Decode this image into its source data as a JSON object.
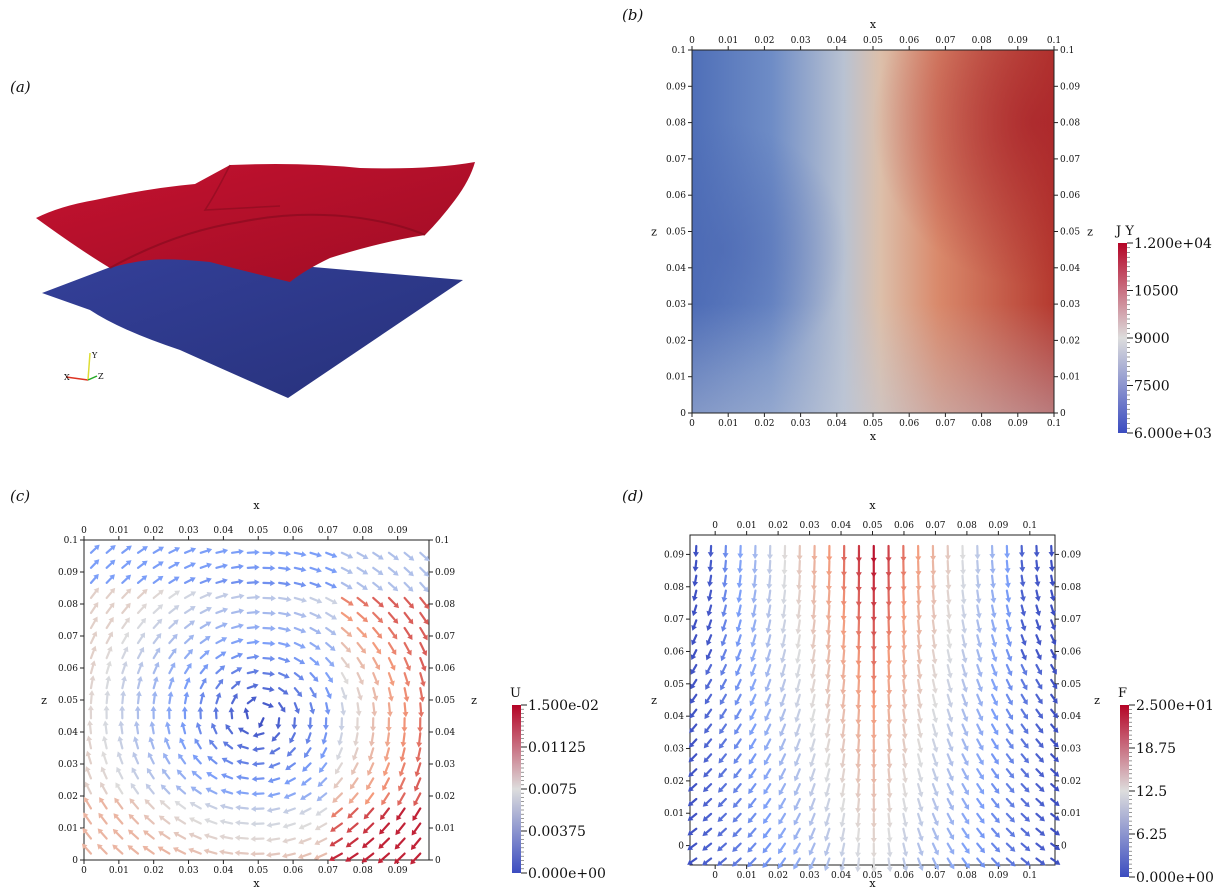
{
  "panels": {
    "a": "(a)",
    "b": "(b)",
    "c": "(c)",
    "d": "(d)"
  },
  "chart_data": [
    {
      "panel": "(a)",
      "type": "surface",
      "surfaces": [
        {
          "color": "#b5112b",
          "description_level": "upper"
        },
        {
          "color": "#2e3a8c",
          "description_level": "lower"
        }
      ],
      "axis_triad": [
        "X",
        "Y",
        "Z"
      ]
    },
    {
      "panel": "(b)",
      "type": "heatmap",
      "xlabel": "x",
      "ylabel": "z",
      "xlim": [
        0,
        0.1
      ],
      "ylim": [
        0,
        0.1
      ],
      "ticks": [
        "0",
        "0.01",
        "0.02",
        "0.03",
        "0.04",
        "0.05",
        "0.06",
        "0.07",
        "0.08",
        "0.09",
        "0.1"
      ],
      "colorbar": {
        "title": "J Y",
        "min": 6000,
        "max": 12000,
        "labels": [
          "1.200e+04",
          "10500",
          "9000",
          "7500",
          "6.000e+03"
        ],
        "label_values": [
          12000,
          10500,
          9000,
          7500,
          6000
        ]
      },
      "field": {
        "description": "value increases from left (~7000) to right (~11500), max near x=0.1, z=0.08",
        "samples": [
          {
            "x": 0.0,
            "z": 0.09,
            "value": 7000
          },
          {
            "x": 0.02,
            "z": 0.05,
            "value": 6900
          },
          {
            "x": 0.05,
            "z": 0.05,
            "value": 9000
          },
          {
            "x": 0.08,
            "z": 0.05,
            "value": 10800
          },
          {
            "x": 0.1,
            "z": 0.08,
            "value": 11800
          },
          {
            "x": 0.0,
            "z": 0.0,
            "value": 8200
          },
          {
            "x": 0.1,
            "z": 0.0,
            "value": 10400
          }
        ]
      }
    },
    {
      "panel": "(c)",
      "type": "vector-field",
      "xlabel": "x",
      "ylabel": "z",
      "xlim": [
        0,
        0.099
      ],
      "ylim": [
        0,
        0.1
      ],
      "xticks": [
        "0",
        "0.01",
        "0.02",
        "0.03",
        "0.04",
        "0.05",
        "0.06",
        "0.07",
        "0.08",
        "0.09"
      ],
      "yticks": [
        "0",
        "0.01",
        "0.02",
        "0.03",
        "0.04",
        "0.05",
        "0.06",
        "0.07",
        "0.08",
        "0.09",
        "0.1"
      ],
      "colorbar": {
        "title": "U",
        "min": 0,
        "max": 0.015,
        "labels": [
          "1.500e-02",
          "0.01125",
          "0.0075",
          "0.00375",
          "0.000e+00"
        ],
        "label_values": [
          0.015,
          0.01125,
          0.0075,
          0.00375,
          0
        ]
      },
      "flow": "clockwise recirculating vortex centred near x=0.05, z=0.045"
    },
    {
      "panel": "(d)",
      "type": "vector-field",
      "xlabel": "x",
      "ylabel": "z",
      "xlim": [
        -0.008,
        0.108
      ],
      "ylim": [
        -0.006,
        0.096
      ],
      "xticks": [
        "0",
        "0.01",
        "0.02",
        "0.03",
        "0.04",
        "0.05",
        "0.06",
        "0.07",
        "0.08",
        "0.09",
        "0.1"
      ],
      "yticks": [
        "0",
        "0.01",
        "0.02",
        "0.03",
        "0.04",
        "0.05",
        "0.06",
        "0.07",
        "0.08",
        "0.09"
      ],
      "colorbar": {
        "title": "F",
        "min": 0,
        "max": 25,
        "labels": [
          "2.500e+01",
          "18.75",
          "12.5",
          "6.25",
          "0.000e+00"
        ],
        "label_values": [
          25,
          18.75,
          12.5,
          6.25,
          0
        ]
      },
      "flow": "downward flow, strongest at centre top, fanning outward to the sides near the bottom"
    }
  ]
}
